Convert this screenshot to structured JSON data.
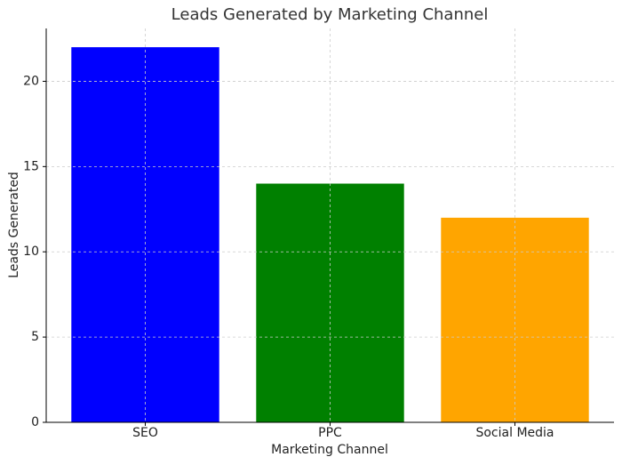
{
  "chart_data": {
    "type": "bar",
    "title": "Leads Generated by Marketing Channel",
    "x_label": "Marketing Channel",
    "y_label": "Leads Generated",
    "categories": [
      "SEO",
      "PPC",
      "Social Media"
    ],
    "values": [
      22,
      14,
      12
    ],
    "colors": [
      "#0000ff",
      "#008000",
      "#ffa500"
    ],
    "ylim": [
      0,
      23.1
    ],
    "yticks": [
      0,
      5,
      10,
      15,
      20
    ],
    "grid": true
  }
}
